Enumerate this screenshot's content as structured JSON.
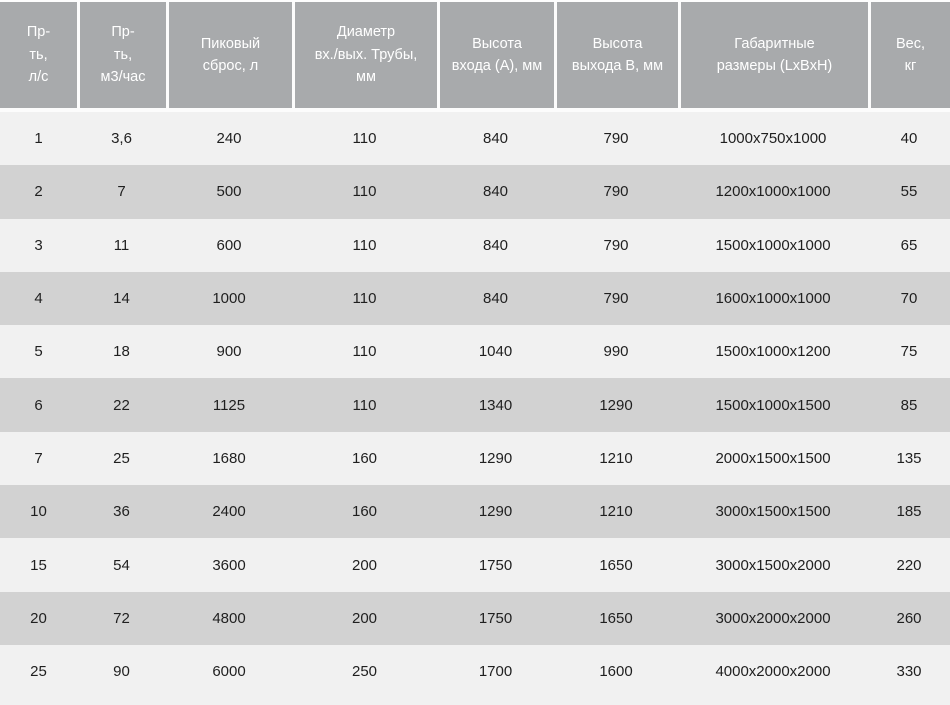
{
  "colors": {
    "header_bg": "#a8aaac",
    "header_text": "#ffffff",
    "row_light": "#f1f1f1",
    "row_dark": "#d2d2d2",
    "body_text": "#1f1f1f",
    "separator": "#fcfcfc"
  },
  "chart_data": {
    "type": "table",
    "columns": [
      "Пр-\nть,\nл/с",
      "Пр-\nть,\nм3/час",
      "Пиковый\nсброс, л",
      "Диаметр\nвх./вых. Трубы,\nмм",
      "Высота\nвхода (А), мм",
      "Высота\nвыхода В, мм",
      "Габаритные\nразмеры (LxBxH)",
      "Вес,\nкг"
    ],
    "rows": [
      [
        "1",
        "3,6",
        "240",
        "110",
        "840",
        "790",
        "1000x750x1000",
        "40"
      ],
      [
        "2",
        "7",
        "500",
        "110",
        "840",
        "790",
        "1200x1000x1000",
        "55"
      ],
      [
        "3",
        "11",
        "600",
        "110",
        "840",
        "790",
        "1500x1000x1000",
        "65"
      ],
      [
        "4",
        "14",
        "1000",
        "110",
        "840",
        "790",
        "1600x1000x1000",
        "70"
      ],
      [
        "5",
        "18",
        "900",
        "110",
        "1040",
        "990",
        "1500x1000x1200",
        "75"
      ],
      [
        "6",
        "22",
        "1125",
        "110",
        "1340",
        "1290",
        "1500x1000x1500",
        "85"
      ],
      [
        "7",
        "25",
        "1680",
        "160",
        "1290",
        "1210",
        "2000x1500x1500",
        "135"
      ],
      [
        "10",
        "36",
        "2400",
        "160",
        "1290",
        "1210",
        "3000x1500x1500",
        "185"
      ],
      [
        "15",
        "54",
        "3600",
        "200",
        "1750",
        "1650",
        "3000x1500x2000",
        "220"
      ],
      [
        "20",
        "72",
        "4800",
        "200",
        "1750",
        "1650",
        "3000x2000x2000",
        "260"
      ],
      [
        "25",
        "90",
        "6000",
        "250",
        "1700",
        "1600",
        "4000x2000x2000",
        "330"
      ]
    ]
  }
}
